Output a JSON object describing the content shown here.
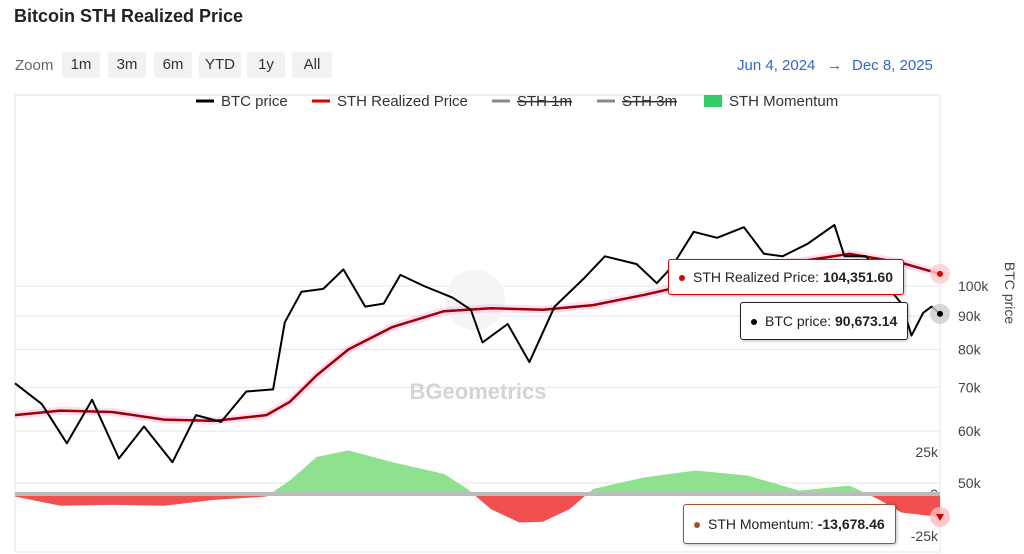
{
  "title": "Bitcoin STH Realized Price",
  "zoom": {
    "label": "Zoom",
    "buttons": [
      "1m",
      "3m",
      "6m",
      "YTD",
      "1y",
      "All"
    ]
  },
  "range": {
    "from": "Jun 4, 2024",
    "arrow": "→",
    "to": "Dec 8, 2025"
  },
  "legend": [
    {
      "label": "BTC price",
      "color": "#000000",
      "style": "line",
      "enabled": true
    },
    {
      "label": "STH Realized Price",
      "color": "#dd0000",
      "style": "line",
      "enabled": true
    },
    {
      "label": "STH 1m",
      "color": "#888888",
      "style": "line",
      "enabled": false
    },
    {
      "label": "STH 3m",
      "color": "#888888",
      "style": "line",
      "enabled": false
    },
    {
      "label": "STH Momentum",
      "color": "#33cc66",
      "style": "area",
      "enabled": true
    }
  ],
  "watermark": "BGeometrics",
  "tooltips": {
    "sth": {
      "label": "STH Realized Price:",
      "value": "104,351.60",
      "color": "#dd0000"
    },
    "btc": {
      "label": "BTC price:",
      "value": "90,673.14",
      "color": "#000000"
    },
    "momentum": {
      "label": "STH Momentum:",
      "value": "-13,678.46",
      "color": "#a0522d"
    }
  },
  "colors": {
    "btc": "#000000",
    "sth": "#a00000",
    "sth_glow": "#ff44cc",
    "momentum_pos": "#8fe08f",
    "momentum_neg": "#f05050",
    "zero_line": "#bbbbbb",
    "grid": "#e6e6e6"
  },
  "chart_data": {
    "type": "line",
    "x_range": [
      "2024-06-04",
      "2025-12-08"
    ],
    "y_axis": {
      "label": "BTC price",
      "scale": "log",
      "ticks": [
        50000,
        60000,
        70000,
        80000,
        90000,
        100000
      ],
      "tick_labels": [
        "50k",
        "60k",
        "70k",
        "80k",
        "90k",
        "100k"
      ]
    },
    "momentum_axis": {
      "ticks": [
        -25000,
        0,
        25000
      ],
      "tick_labels": [
        "-25k",
        "0",
        "25k"
      ]
    },
    "series": [
      {
        "name": "BTC price",
        "x": [
          "2024-06-04",
          "2024-06-20",
          "2024-07-05",
          "2024-07-20",
          "2024-08-05",
          "2024-08-20",
          "2024-09-06",
          "2024-09-20",
          "2024-10-05",
          "2024-10-20",
          "2024-11-05",
          "2024-11-12",
          "2024-11-22",
          "2024-12-05",
          "2024-12-17",
          "2024-12-30",
          "2025-01-10",
          "2025-01-20",
          "2025-02-03",
          "2025-02-20",
          "2025-03-03",
          "2025-03-10",
          "2025-03-25",
          "2025-04-07",
          "2025-04-22",
          "2025-05-10",
          "2025-05-22",
          "2025-06-10",
          "2025-06-22",
          "2025-07-01",
          "2025-07-14",
          "2025-07-28",
          "2025-08-13",
          "2025-08-25",
          "2025-09-05",
          "2025-09-20",
          "2025-10-06",
          "2025-10-12",
          "2025-10-25",
          "2025-11-05",
          "2025-11-15",
          "2025-11-21",
          "2025-11-28",
          "2025-12-03",
          "2025-12-08"
        ],
        "values": [
          71000,
          66000,
          57500,
          67000,
          54500,
          61000,
          53800,
          63500,
          62000,
          69000,
          69500,
          88000,
          98000,
          99000,
          106000,
          93000,
          94000,
          104000,
          100000,
          96000,
          92000,
          82000,
          87500,
          76500,
          93000,
          103000,
          111000,
          108000,
          101000,
          107000,
          121000,
          118500,
          123000,
          112000,
          111000,
          116000,
          124000,
          111000,
          111000,
          101000,
          94000,
          84000,
          91000,
          93000,
          90673
        ]
      },
      {
        "name": "STH Realized Price",
        "x": [
          "2024-06-04",
          "2024-07-01",
          "2024-08-01",
          "2024-09-01",
          "2024-10-01",
          "2024-11-01",
          "2024-11-15",
          "2024-12-01",
          "2024-12-20",
          "2025-01-15",
          "2025-02-15",
          "2025-03-15",
          "2025-04-15",
          "2025-05-15",
          "2025-06-15",
          "2025-07-15",
          "2025-08-15",
          "2025-09-15",
          "2025-10-15",
          "2025-11-15",
          "2025-12-08"
        ],
        "values": [
          63500,
          64500,
          64200,
          62500,
          62200,
          63500,
          66500,
          73000,
          80000,
          86500,
          91500,
          92500,
          92000,
          93500,
          97000,
          101000,
          107000,
          109000,
          112000,
          108500,
          104351.6
        ]
      },
      {
        "name": "STH Momentum",
        "x": [
          "2024-06-04",
          "2024-07-01",
          "2024-08-01",
          "2024-09-01",
          "2024-10-01",
          "2024-11-01",
          "2024-11-15",
          "2024-12-01",
          "2024-12-20",
          "2025-01-15",
          "2025-02-15",
          "2025-03-01",
          "2025-03-15",
          "2025-04-01",
          "2025-04-15",
          "2025-05-01",
          "2025-05-15",
          "2025-06-15",
          "2025-07-15",
          "2025-08-15",
          "2025-09-15",
          "2025-10-15",
          "2025-11-01",
          "2025-11-15",
          "2025-12-08"
        ],
        "values": [
          -1500,
          -7000,
          -6500,
          -7000,
          -3500,
          -1500,
          8000,
          22000,
          26000,
          19000,
          12000,
          3000,
          -9000,
          -17000,
          -16500,
          -9000,
          3000,
          10000,
          14000,
          11000,
          2000,
          5000,
          -3000,
          -11000,
          -13678.46
        ]
      }
    ]
  }
}
